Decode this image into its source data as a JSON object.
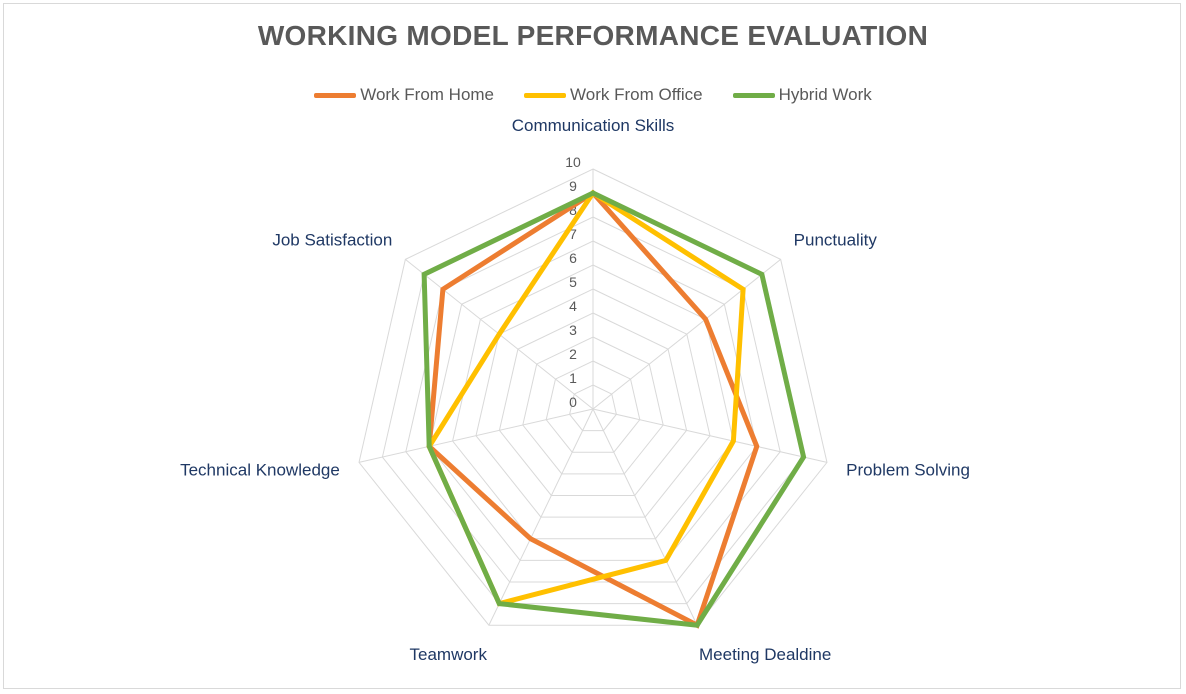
{
  "chart_data": {
    "type": "radar",
    "title": "WORKING MODEL PERFORMANCE EVALUATION",
    "categories": [
      "Communication Skills",
      "Punctuality",
      "Problem Solving",
      "Meeting Dealdine",
      "Teamwork",
      "Technical Knowledge",
      "Job Satisfaction"
    ],
    "series": [
      {
        "name": "Work From Home",
        "color": "#ed7d31",
        "values": [
          9,
          6,
          7,
          10,
          6,
          7,
          8
        ]
      },
      {
        "name": "Work From Office",
        "color": "#ffc000",
        "values": [
          9,
          8,
          6,
          7,
          9,
          7,
          5
        ]
      },
      {
        "name": "Hybrid Work",
        "color": "#70ad47",
        "values": [
          9,
          9,
          9,
          10,
          9,
          7,
          9
        ]
      }
    ],
    "r_range": [
      0,
      10
    ],
    "ticks": [
      "0",
      "1",
      "2",
      "3",
      "4",
      "5",
      "6",
      "7",
      "8",
      "9",
      "10"
    ],
    "grid": true,
    "legend_position": "top"
  }
}
